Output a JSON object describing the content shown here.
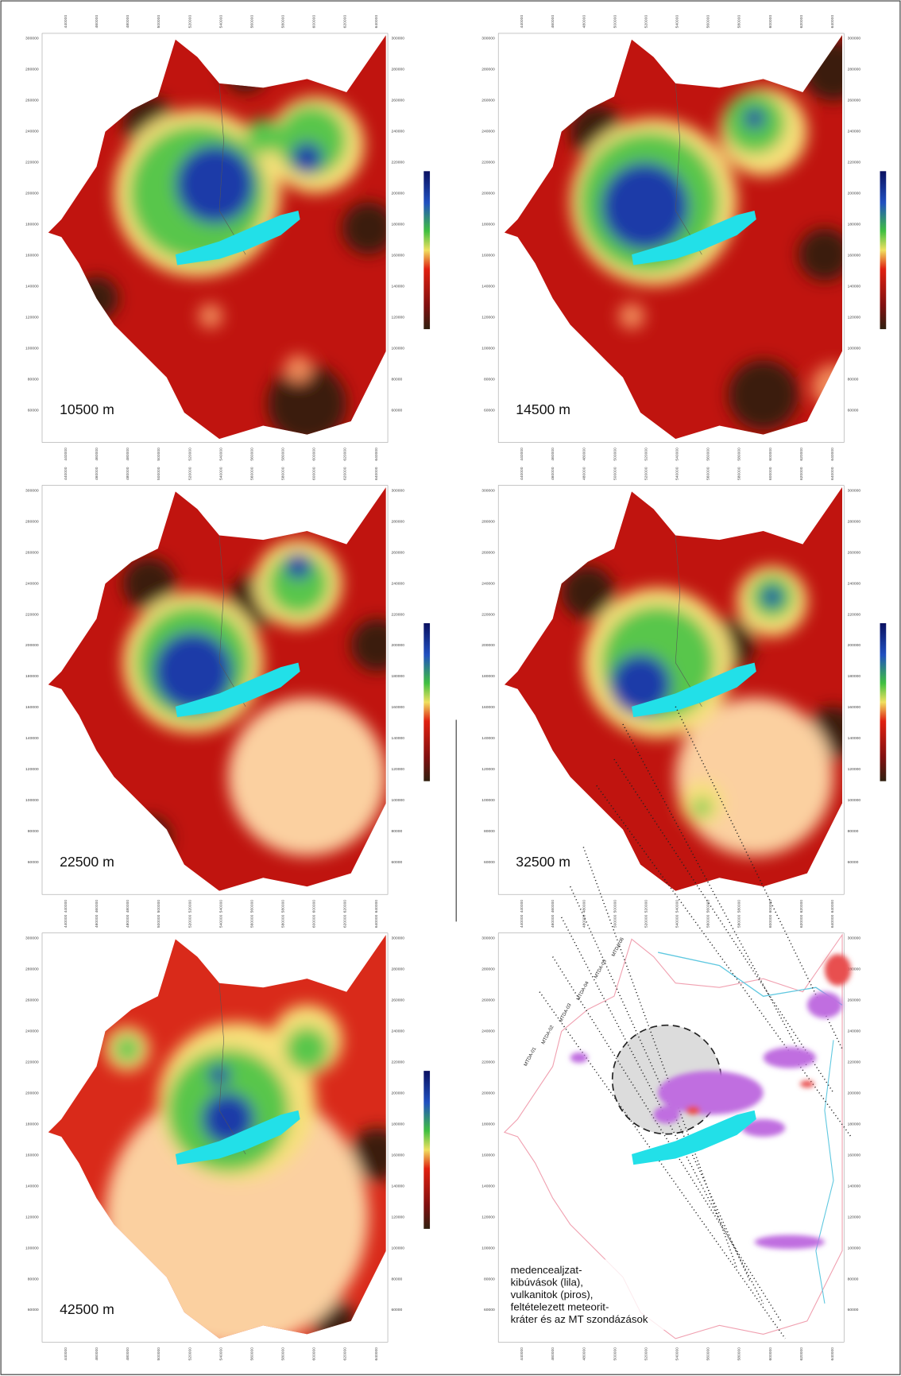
{
  "panels": [
    {
      "label": "10500 m"
    },
    {
      "label": "14500 m"
    },
    {
      "label": "22500 m"
    },
    {
      "label": "32500 m"
    },
    {
      "label": "42500 m"
    }
  ],
  "axes": {
    "y_ticks": [
      "300000",
      "280000",
      "260000",
      "240000",
      "220000",
      "200000",
      "180000",
      "160000",
      "140000",
      "120000",
      "100000",
      "80000",
      "60000"
    ],
    "x_ticks": [
      "440000",
      "460000",
      "480000",
      "500000",
      "520000",
      "540000",
      "560000",
      "580000",
      "600000",
      "620000",
      "640000"
    ]
  },
  "legend_panel": {
    "profiles": [
      "MTDA-01",
      "MTDA-02",
      "MTDA-03",
      "MTDA-04",
      "MTDA-05",
      "MTDA-06"
    ],
    "caption": [
      "medencealjzat-",
      "kibúvások (lila),",
      "vulkanitok (piros),",
      "feltételezett meteorit-",
      "kráter és az MT szondázások"
    ]
  }
}
